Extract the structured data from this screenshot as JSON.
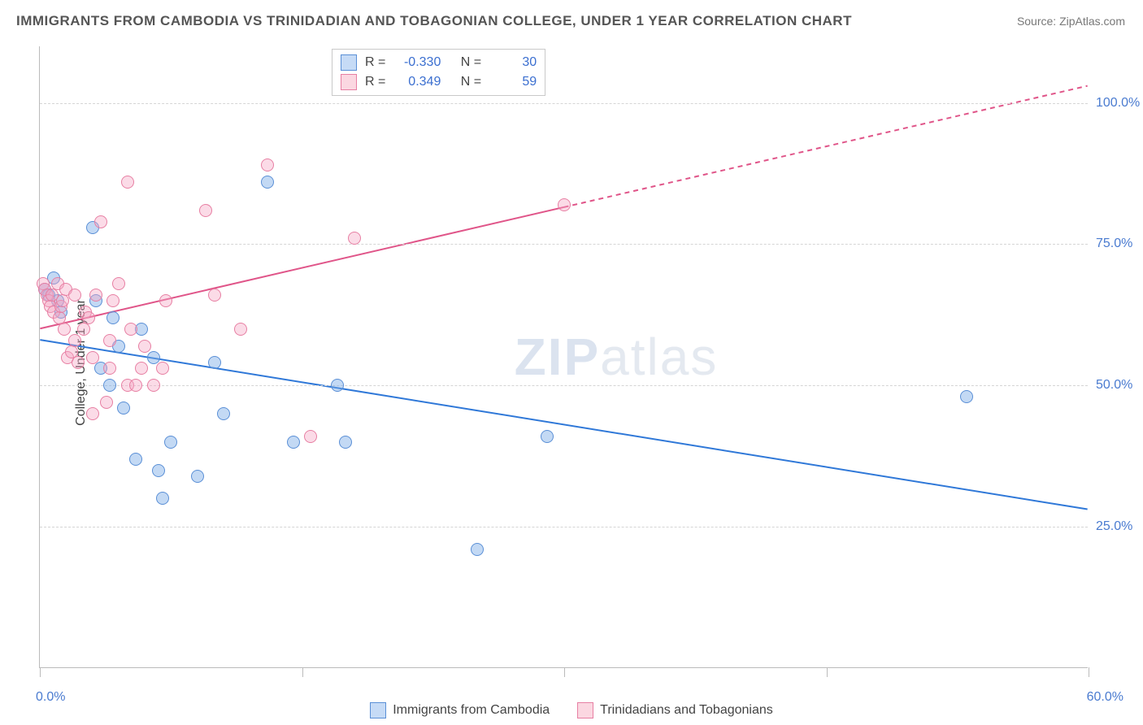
{
  "title": "IMMIGRANTS FROM CAMBODIA VS TRINIDADIAN AND TOBAGONIAN COLLEGE, UNDER 1 YEAR CORRELATION CHART",
  "source": "Source: ZipAtlas.com",
  "ylabel": "College, Under 1 year",
  "watermark_a": "ZIP",
  "watermark_b": "atlas",
  "chart": {
    "type": "scatter",
    "xlim": [
      0,
      60
    ],
    "ylim": [
      0,
      110
    ],
    "x_ticks": [
      0,
      15,
      30,
      45,
      60
    ],
    "x_tick_labels": {
      "first": "0.0%",
      "last": "60.0%"
    },
    "y_ticks": [
      25,
      50,
      75,
      100
    ],
    "y_tick_labels": [
      "25.0%",
      "50.0%",
      "75.0%",
      "100.0%"
    ],
    "grid_color": "#d5d5d5",
    "axis_color": "#bbbbbb",
    "background_color": "#ffffff",
    "series": [
      {
        "name": "Immigrants from Cambodia",
        "color_fill": "rgba(122,170,230,0.45)",
        "color_stroke": "#5a8fd6",
        "marker_radius": 8,
        "r_value": "-0.330",
        "n_value": "30",
        "trend": {
          "color": "#2f78d8",
          "width": 2,
          "solid_range_x": [
            0,
            60
          ],
          "y_start": 58,
          "y_end": 28,
          "dash_from_x": null
        },
        "points": [
          [
            0.3,
            67
          ],
          [
            0.5,
            66
          ],
          [
            0.8,
            69
          ],
          [
            1.0,
            65
          ],
          [
            1.2,
            63
          ],
          [
            3.0,
            78
          ],
          [
            3.2,
            65
          ],
          [
            3.5,
            53
          ],
          [
            4.0,
            50
          ],
          [
            4.2,
            62
          ],
          [
            4.5,
            57
          ],
          [
            4.8,
            46
          ],
          [
            5.5,
            37
          ],
          [
            5.8,
            60
          ],
          [
            6.5,
            55
          ],
          [
            6.8,
            35
          ],
          [
            7.0,
            30
          ],
          [
            7.5,
            40
          ],
          [
            9.0,
            34
          ],
          [
            10.0,
            54
          ],
          [
            10.5,
            45
          ],
          [
            13.0,
            86
          ],
          [
            14.5,
            40
          ],
          [
            17.0,
            50
          ],
          [
            17.5,
            40
          ],
          [
            25.0,
            21
          ],
          [
            29.0,
            41
          ],
          [
            53.0,
            48
          ]
        ]
      },
      {
        "name": "Trinidadians and Tobagonians",
        "color_fill": "rgba(245,165,195,0.40)",
        "color_stroke": "#e77fa3",
        "marker_radius": 8,
        "r_value": "0.349",
        "n_value": "59",
        "trend": {
          "color": "#e05589",
          "width": 2,
          "solid_range_x": [
            0,
            30
          ],
          "y_start": 60,
          "y_end": 103,
          "dash_from_x": 30
        },
        "points": [
          [
            0.2,
            68
          ],
          [
            0.3,
            67
          ],
          [
            0.4,
            66
          ],
          [
            0.5,
            65
          ],
          [
            0.6,
            64
          ],
          [
            0.7,
            66
          ],
          [
            0.8,
            63
          ],
          [
            1.0,
            68
          ],
          [
            1.1,
            62
          ],
          [
            1.2,
            64
          ],
          [
            1.3,
            65
          ],
          [
            1.4,
            60
          ],
          [
            1.5,
            67
          ],
          [
            1.6,
            55
          ],
          [
            1.8,
            56
          ],
          [
            2.0,
            58
          ],
          [
            2.0,
            66
          ],
          [
            2.2,
            54
          ],
          [
            2.5,
            60
          ],
          [
            2.6,
            63
          ],
          [
            2.8,
            62
          ],
          [
            3.0,
            45
          ],
          [
            3.0,
            55
          ],
          [
            3.2,
            66
          ],
          [
            3.5,
            79
          ],
          [
            3.8,
            47
          ],
          [
            4.0,
            58
          ],
          [
            4.0,
            53
          ],
          [
            4.2,
            65
          ],
          [
            4.5,
            68
          ],
          [
            5.0,
            50
          ],
          [
            5.0,
            86
          ],
          [
            5.2,
            60
          ],
          [
            5.5,
            50
          ],
          [
            5.8,
            53
          ],
          [
            6.0,
            57
          ],
          [
            6.5,
            50
          ],
          [
            7.0,
            53
          ],
          [
            7.2,
            65
          ],
          [
            9.5,
            81
          ],
          [
            10.0,
            66
          ],
          [
            11.5,
            60
          ],
          [
            13.0,
            89
          ],
          [
            15.5,
            41
          ],
          [
            18.0,
            76
          ],
          [
            30.0,
            82
          ]
        ]
      }
    ],
    "legend_bottom": [
      {
        "label": "Immigrants from Cambodia",
        "swatch_class": "blue"
      },
      {
        "label": "Trinidadians and Tobagonians",
        "swatch_class": "pink"
      }
    ],
    "legend_stats_labels": {
      "r": "R =",
      "n": "N ="
    }
  }
}
